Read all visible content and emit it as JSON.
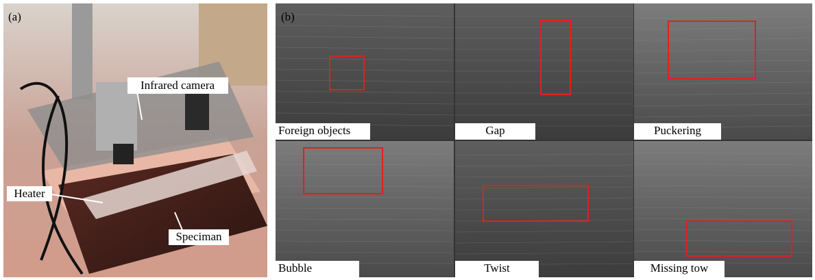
{
  "panel_a": {
    "label": "(a)",
    "annotations": [
      "Infrared camera",
      "Heater",
      "Speciman"
    ]
  },
  "panel_b": {
    "label": "(b)",
    "tiles": [
      "Foreign objects",
      "Gap",
      "Puckering",
      "Bubble",
      "Twist",
      "Missing tow"
    ]
  }
}
